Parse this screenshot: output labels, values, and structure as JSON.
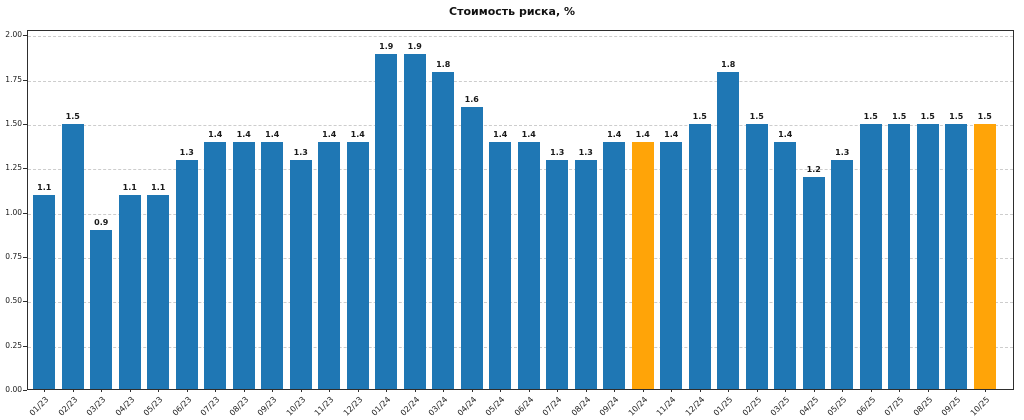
{
  "chart_data": {
    "type": "bar",
    "title": "Стоимость риска, %",
    "xlabel": "",
    "ylabel": "",
    "categories": [
      "01/23",
      "02/23",
      "03/23",
      "04/23",
      "05/23",
      "06/23",
      "07/23",
      "08/23",
      "09/23",
      "10/23",
      "11/23",
      "12/23",
      "01/24",
      "02/24",
      "03/24",
      "04/24",
      "05/24",
      "06/24",
      "07/24",
      "08/24",
      "09/24",
      "10/24",
      "11/24",
      "12/24",
      "01/25",
      "02/25",
      "03/25",
      "04/25",
      "05/25",
      "06/25",
      "07/25",
      "08/25",
      "09/25",
      "10/25"
    ],
    "values": [
      1.1,
      1.5,
      0.9,
      1.1,
      1.1,
      1.3,
      1.4,
      1.4,
      1.4,
      1.3,
      1.4,
      1.4,
      1.9,
      1.9,
      1.8,
      1.6,
      1.4,
      1.4,
      1.3,
      1.3,
      1.4,
      1.4,
      1.4,
      1.5,
      1.8,
      1.5,
      1.4,
      1.2,
      1.3,
      1.5,
      1.5,
      1.5,
      1.5,
      1.5
    ],
    "highlighted_categories": [
      "10/24",
      "10/25"
    ],
    "bar_color": "#1f77b4",
    "highlight_color": "#ffa408",
    "yticks": [
      0,
      0.25,
      0.5,
      0.75,
      1.0,
      1.25,
      1.5,
      1.75,
      2.0
    ],
    "ylim": [
      0,
      2.03
    ],
    "grid": "horizontal-dashed",
    "legend": "none",
    "value_labels": true
  }
}
